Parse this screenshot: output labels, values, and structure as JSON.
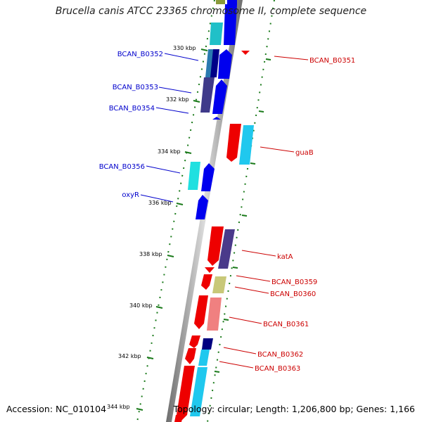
{
  "title": "Brucella canis ATCC 23365 chromosome II, complete sequence",
  "footer": {
    "accession": "Accession: NC_010104",
    "summary": "Topology: circular; Length: 1,206,800 bp; Genes: 1,166"
  },
  "ticks": [
    "330 kbp",
    "332 kbp",
    "334 kbp",
    "336 kbp",
    "338 kbp",
    "340 kbp",
    "342 kbp",
    "344 kbp"
  ],
  "genes_left": [
    "BCAN_B0352",
    "BCAN_B0353",
    "BCAN_B0354",
    "BCAN_B0356",
    "oxyR"
  ],
  "genes_right": [
    "BCAN_B0351",
    "guaB",
    "katA",
    "BCAN_B0359",
    "BCAN_B0360",
    "BCAN_B0361",
    "BCAN_B0362",
    "BCAN_B0363"
  ],
  "colors": {
    "forward_label": "#0000cc",
    "reverse_label": "#cc0000",
    "tick": "#1a7a1a",
    "backbone": "#999999"
  }
}
